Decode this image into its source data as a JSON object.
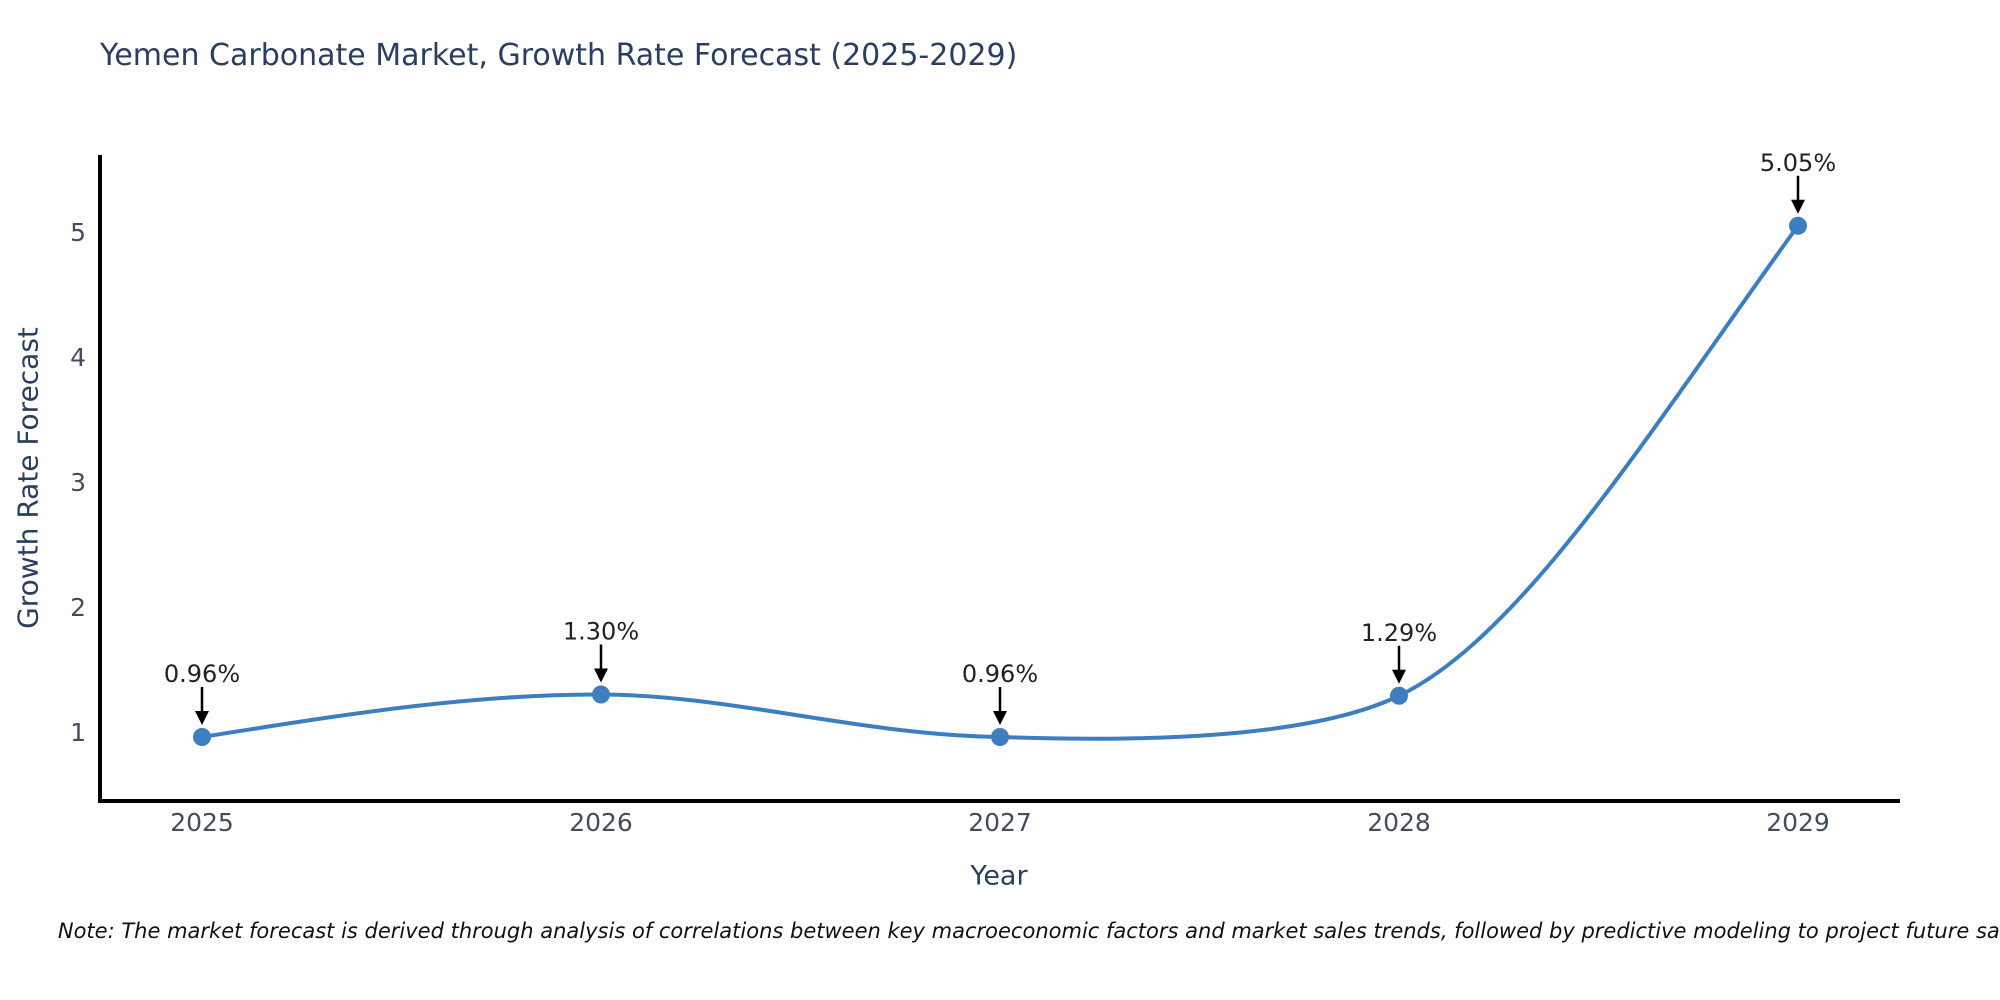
{
  "title": "Yemen Carbonate Market, Growth Rate Forecast (2025-2029)",
  "note": "Note: The market forecast is derived through analysis of correlations between key macroeconomic factors and market sales trends, followed by predictive modeling to project future sales.",
  "chart_data": {
    "type": "line",
    "title": "Yemen Carbonate Market, Growth Rate Forecast (2025-2029)",
    "x": [
      2025,
      2026,
      2027,
      2028,
      2029
    ],
    "series": [
      {
        "name": "Growth Rate Forecast",
        "values": [
          0.96,
          1.3,
          0.96,
          1.29,
          5.05
        ]
      }
    ],
    "point_labels": [
      "0.96%",
      "1.30%",
      "0.96%",
      "1.29%",
      "5.05%"
    ],
    "xlabel": "Year",
    "ylabel": "Growth Rate Forecast",
    "yticks": [
      1,
      2,
      3,
      4,
      5
    ],
    "xlim": [
      2024.74,
      2029.26
    ],
    "ylim": [
      0.43,
      5.62
    ],
    "grid": false,
    "legend": false,
    "line_shape": "spline",
    "line_color": "#3d7ebf",
    "marker_color": "#3d7ebf",
    "axis_color": "#000000",
    "annotation_color": "#222222",
    "title_color": "#2a3f5f",
    "tick_color": "#444d5c"
  }
}
